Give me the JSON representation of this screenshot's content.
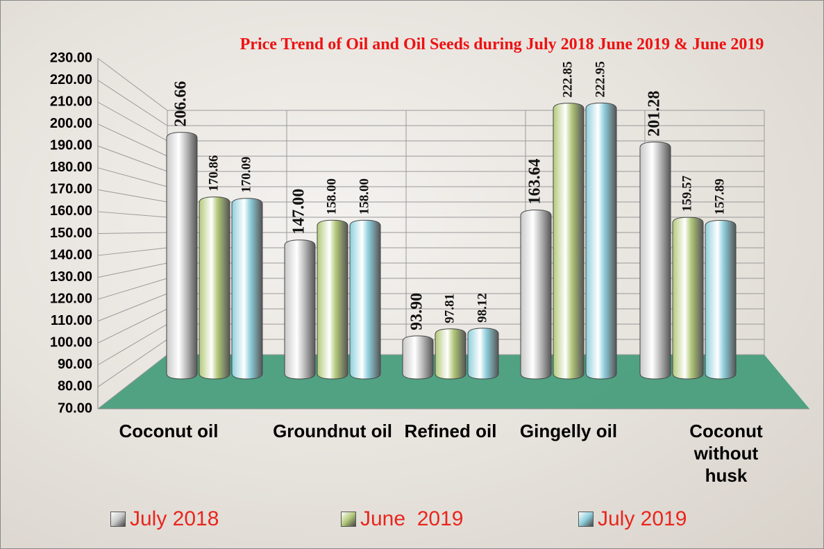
{
  "chart_data": {
    "type": "bar",
    "title": "Price Trend of Oil and Oil Seeds during  July  2018  June  2019 & June 2019",
    "categories": [
      "Coconut oil",
      "Groundnut oil",
      "Refined oil",
      "Gingelly oil",
      "Coconut without husk"
    ],
    "series": [
      {
        "name": "July 2018",
        "color": "#c9c9c9",
        "values": [
          206.66,
          147.0,
          93.9,
          163.64,
          201.28
        ],
        "value_labels": [
          "206.66",
          "147.00",
          "93.90",
          "163.64",
          "201.28"
        ]
      },
      {
        "name": "June  2019",
        "color": "#b3c97a",
        "values": [
          170.86,
          158.0,
          97.81,
          222.85,
          159.57
        ],
        "value_labels": [
          "170.86",
          "158.00",
          "97.81",
          "222.85",
          "159.57"
        ]
      },
      {
        "name": "July 2019",
        "color": "#8fcfdc",
        "values": [
          170.09,
          158.0,
          98.12,
          222.95,
          157.89
        ],
        "value_labels": [
          "170.09",
          "158.00",
          "98.12",
          "222.95",
          "157.89"
        ]
      }
    ],
    "ylim": [
      70,
      230
    ],
    "yticks": [
      {
        "value": 70,
        "label": "70.00"
      },
      {
        "value": 80,
        "label": "80.00"
      },
      {
        "value": 90,
        "label": "90.00"
      },
      {
        "value": 100,
        "label": "100.00"
      },
      {
        "value": 110,
        "label": "110.00"
      },
      {
        "value": 120,
        "label": "120.00"
      },
      {
        "value": 130,
        "label": "130.00"
      },
      {
        "value": 140,
        "label": "140.00"
      },
      {
        "value": 150,
        "label": "150.00"
      },
      {
        "value": 160,
        "label": "160.00"
      },
      {
        "value": 170,
        "label": "170.00"
      },
      {
        "value": 180,
        "label": "180.00"
      },
      {
        "value": 190,
        "label": "190.00"
      },
      {
        "value": 200,
        "label": "200.00"
      },
      {
        "value": 210,
        "label": "210.00"
      },
      {
        "value": 220,
        "label": "220.00"
      },
      {
        "value": 230,
        "label": "230.00"
      }
    ],
    "grid": true,
    "legend": "bottom"
  }
}
